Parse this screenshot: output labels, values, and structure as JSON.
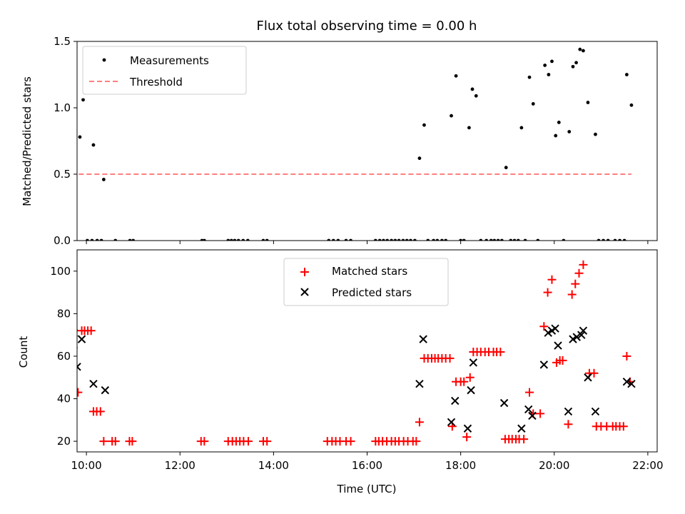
{
  "chart_data": [
    {
      "type": "scatter",
      "title": "Flux total observing time = 0.00 h",
      "xlabel": "",
      "ylabel": "Matched/Predicted stars",
      "xlim": [
        9.8,
        22.2
      ],
      "ylim": [
        0,
        1.5
      ],
      "xticks": [
        10,
        12,
        14,
        16,
        18,
        20,
        22
      ],
      "yticks": [
        {
          "value": 0.0,
          "label": "0.0"
        },
        {
          "value": 0.5,
          "label": "0.5"
        },
        {
          "value": 1.0,
          "label": "1.0"
        },
        {
          "value": 1.5,
          "label": "1.5"
        }
      ],
      "legend_position": "top-left",
      "series": [
        {
          "name": "Measurements",
          "marker": "dot",
          "color": "#000000",
          "points": [
            [
              9.6,
              1.03
            ],
            [
              9.76,
              0.9
            ],
            [
              9.86,
              0.78
            ],
            [
              9.93,
              1.06
            ],
            [
              10.15,
              0.72
            ],
            [
              10.37,
              0.46
            ],
            [
              9.55,
              0.0
            ],
            [
              9.7,
              0.0
            ],
            [
              10.02,
              0.0
            ],
            [
              10.12,
              0.0
            ],
            [
              10.23,
              0.0
            ],
            [
              10.32,
              0.0
            ],
            [
              10.62,
              0.0
            ],
            [
              10.93,
              0.0
            ],
            [
              11.0,
              0.0
            ],
            [
              12.47,
              0.0
            ],
            [
              12.52,
              0.0
            ],
            [
              13.03,
              0.0
            ],
            [
              13.1,
              0.0
            ],
            [
              13.17,
              0.0
            ],
            [
              13.25,
              0.0
            ],
            [
              13.35,
              0.0
            ],
            [
              13.45,
              0.0
            ],
            [
              13.78,
              0.0
            ],
            [
              13.86,
              0.0
            ],
            [
              15.18,
              0.0
            ],
            [
              15.28,
              0.0
            ],
            [
              15.38,
              0.0
            ],
            [
              15.55,
              0.0
            ],
            [
              15.65,
              0.0
            ],
            [
              16.18,
              0.0
            ],
            [
              16.27,
              0.0
            ],
            [
              16.35,
              0.0
            ],
            [
              16.43,
              0.0
            ],
            [
              16.52,
              0.0
            ],
            [
              16.6,
              0.0
            ],
            [
              16.68,
              0.0
            ],
            [
              16.77,
              0.0
            ],
            [
              16.85,
              0.0
            ],
            [
              16.93,
              0.0
            ],
            [
              17.02,
              0.0
            ],
            [
              17.12,
              0.62
            ],
            [
              17.22,
              0.87
            ],
            [
              17.3,
              0.0
            ],
            [
              17.42,
              0.0
            ],
            [
              17.5,
              0.0
            ],
            [
              17.6,
              0.0
            ],
            [
              17.68,
              0.0
            ],
            [
              17.8,
              0.94
            ],
            [
              17.9,
              1.24
            ],
            [
              18.0,
              0.0
            ],
            [
              18.07,
              0.0
            ],
            [
              18.18,
              0.85
            ],
            [
              18.25,
              1.14
            ],
            [
              18.33,
              1.09
            ],
            [
              18.43,
              0.0
            ],
            [
              18.55,
              0.0
            ],
            [
              18.65,
              0.0
            ],
            [
              18.72,
              0.0
            ],
            [
              18.8,
              0.0
            ],
            [
              18.88,
              0.0
            ],
            [
              18.97,
              0.55
            ],
            [
              19.07,
              0.0
            ],
            [
              19.15,
              0.0
            ],
            [
              19.23,
              0.0
            ],
            [
              19.3,
              0.85
            ],
            [
              19.38,
              0.0
            ],
            [
              19.47,
              1.23
            ],
            [
              19.55,
              1.03
            ],
            [
              19.65,
              0.0
            ],
            [
              19.8,
              1.32
            ],
            [
              19.88,
              1.25
            ],
            [
              19.95,
              1.35
            ],
            [
              20.03,
              0.79
            ],
            [
              20.1,
              0.89
            ],
            [
              20.2,
              0.0
            ],
            [
              20.32,
              0.82
            ],
            [
              20.4,
              1.31
            ],
            [
              20.47,
              1.34
            ],
            [
              20.55,
              1.44
            ],
            [
              20.62,
              1.43
            ],
            [
              20.72,
              1.04
            ],
            [
              20.88,
              0.8
            ],
            [
              20.95,
              0.0
            ],
            [
              21.05,
              0.0
            ],
            [
              21.15,
              0.0
            ],
            [
              21.3,
              0.0
            ],
            [
              21.4,
              0.0
            ],
            [
              21.5,
              0.0
            ],
            [
              21.55,
              1.25
            ],
            [
              21.65,
              1.02
            ]
          ]
        },
        {
          "name": "Threshold",
          "line": "dashed",
          "color": "#ff7f7f",
          "points": [
            [
              9.5,
              0.5
            ],
            [
              21.65,
              0.5
            ]
          ]
        }
      ]
    },
    {
      "type": "scatter",
      "title": "",
      "xlabel": "Time (UTC)",
      "ylabel": "Count",
      "xlim": [
        9.8,
        22.2
      ],
      "ylim": [
        15,
        110
      ],
      "xticks": [
        {
          "value": 10,
          "label": "10:00"
        },
        {
          "value": 12,
          "label": "12:00"
        },
        {
          "value": 14,
          "label": "14:00"
        },
        {
          "value": 16,
          "label": "16:00"
        },
        {
          "value": 18,
          "label": "18:00"
        },
        {
          "value": 20,
          "label": "20:00"
        },
        {
          "value": 22,
          "label": "22:00"
        }
      ],
      "yticks": [
        20,
        40,
        60,
        80,
        100
      ],
      "legend_position": "top-center",
      "series": [
        {
          "name": "Matched stars",
          "marker": "plus",
          "color": "#ff0000",
          "points": [
            [
              9.45,
              105
            ],
            [
              9.58,
              34
            ],
            [
              9.65,
              34
            ],
            [
              9.72,
              64
            ],
            [
              9.82,
              43
            ],
            [
              9.9,
              72
            ],
            [
              9.96,
              72
            ],
            [
              10.03,
              72
            ],
            [
              10.1,
              72
            ],
            [
              10.15,
              34
            ],
            [
              10.22,
              34
            ],
            [
              10.3,
              34
            ],
            [
              10.37,
              20
            ],
            [
              10.55,
              20
            ],
            [
              10.62,
              20
            ],
            [
              10.92,
              20
            ],
            [
              10.98,
              20
            ],
            [
              12.45,
              20
            ],
            [
              12.52,
              20
            ],
            [
              13.03,
              20
            ],
            [
              13.12,
              20
            ],
            [
              13.2,
              20
            ],
            [
              13.28,
              20
            ],
            [
              13.36,
              20
            ],
            [
              13.46,
              20
            ],
            [
              13.78,
              20
            ],
            [
              13.86,
              20
            ],
            [
              15.15,
              20
            ],
            [
              15.25,
              20
            ],
            [
              15.33,
              20
            ],
            [
              15.42,
              20
            ],
            [
              15.55,
              20
            ],
            [
              15.65,
              20
            ],
            [
              16.18,
              20
            ],
            [
              16.25,
              20
            ],
            [
              16.33,
              20
            ],
            [
              16.42,
              20
            ],
            [
              16.52,
              20
            ],
            [
              16.6,
              20
            ],
            [
              16.68,
              20
            ],
            [
              16.78,
              20
            ],
            [
              16.87,
              20
            ],
            [
              16.98,
              20
            ],
            [
              17.05,
              20
            ],
            [
              17.12,
              29
            ],
            [
              17.22,
              59
            ],
            [
              17.3,
              59
            ],
            [
              17.38,
              59
            ],
            [
              17.45,
              59
            ],
            [
              17.52,
              59
            ],
            [
              17.6,
              59
            ],
            [
              17.68,
              59
            ],
            [
              17.77,
              59
            ],
            [
              17.82,
              27
            ],
            [
              17.9,
              48
            ],
            [
              18.0,
              48
            ],
            [
              18.07,
              48
            ],
            [
              18.13,
              22
            ],
            [
              18.2,
              50
            ],
            [
              18.27,
              62
            ],
            [
              18.35,
              62
            ],
            [
              18.43,
              62
            ],
            [
              18.52,
              62
            ],
            [
              18.6,
              62
            ],
            [
              18.7,
              62
            ],
            [
              18.77,
              62
            ],
            [
              18.85,
              62
            ],
            [
              18.95,
              21
            ],
            [
              19.03,
              21
            ],
            [
              19.1,
              21
            ],
            [
              19.18,
              21
            ],
            [
              19.25,
              21
            ],
            [
              19.35,
              21
            ],
            [
              19.47,
              43
            ],
            [
              19.55,
              33
            ],
            [
              19.7,
              33
            ],
            [
              19.78,
              74
            ],
            [
              19.86,
              90
            ],
            [
              19.95,
              96
            ],
            [
              20.05,
              57
            ],
            [
              20.12,
              58
            ],
            [
              20.18,
              58
            ],
            [
              20.3,
              28
            ],
            [
              20.38,
              89
            ],
            [
              20.45,
              94
            ],
            [
              20.53,
              99
            ],
            [
              20.62,
              103
            ],
            [
              20.75,
              52
            ],
            [
              20.85,
              52
            ],
            [
              20.9,
              27
            ],
            [
              21.0,
              27
            ],
            [
              21.12,
              27
            ],
            [
              21.25,
              27
            ],
            [
              21.32,
              27
            ],
            [
              21.4,
              27
            ],
            [
              21.48,
              27
            ],
            [
              21.55,
              60
            ],
            [
              21.62,
              48
            ]
          ]
        },
        {
          "name": "Predicted stars",
          "marker": "x",
          "color": "#000000",
          "points": [
            [
              9.55,
              33
            ],
            [
              9.73,
              71
            ],
            [
              9.8,
              55
            ],
            [
              9.9,
              68
            ],
            [
              10.15,
              47
            ],
            [
              10.4,
              44
            ],
            [
              17.12,
              47
            ],
            [
              17.2,
              68
            ],
            [
              17.8,
              29
            ],
            [
              17.88,
              39
            ],
            [
              18.15,
              26
            ],
            [
              18.22,
              44
            ],
            [
              18.27,
              57
            ],
            [
              18.93,
              38
            ],
            [
              19.3,
              26
            ],
            [
              19.45,
              35
            ],
            [
              19.53,
              32
            ],
            [
              19.78,
              56
            ],
            [
              19.87,
              71
            ],
            [
              19.95,
              72
            ],
            [
              20.02,
              73
            ],
            [
              20.08,
              65
            ],
            [
              20.3,
              34
            ],
            [
              20.4,
              68
            ],
            [
              20.48,
              69
            ],
            [
              20.58,
              70
            ],
            [
              20.62,
              72
            ],
            [
              20.72,
              50
            ],
            [
              20.88,
              34
            ],
            [
              21.55,
              48
            ],
            [
              21.65,
              47
            ]
          ]
        }
      ]
    }
  ]
}
